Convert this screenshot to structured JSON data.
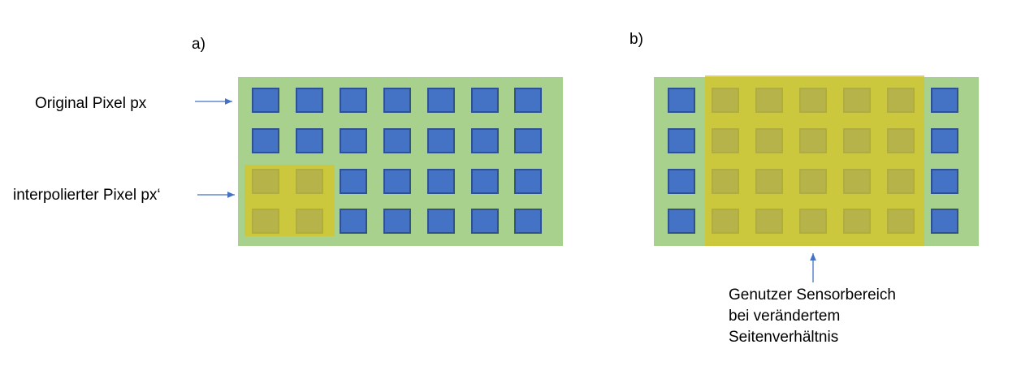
{
  "panel_a": {
    "label": "a)",
    "legend_original": "Original Pixel px",
    "legend_interpolated": "interpolierter Pixel px‘"
  },
  "panel_b": {
    "label": "b)",
    "caption": [
      "Genutzer Sensorbereich",
      "bei verändertem",
      "Seitenverhältnis"
    ]
  },
  "colors": {
    "sensor": "#a9d18e",
    "pixel": "#4472c4",
    "pixel_border": "#2f528f",
    "highlight": "#d6c528",
    "arrow": "#4472c4"
  }
}
